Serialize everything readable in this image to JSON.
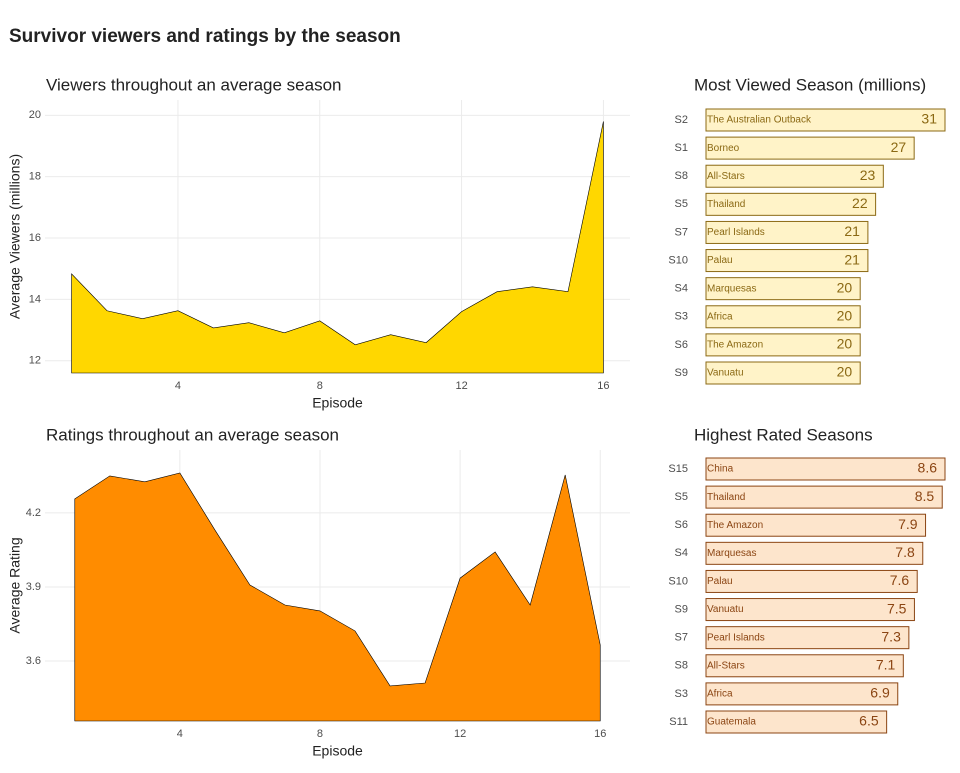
{
  "title": "Survivor viewers and ratings by the season",
  "chart_data": [
    {
      "type": "area",
      "title": "Viewers throughout an average season",
      "xlabel": "Episode",
      "ylabel": "Average Viewers (millions)",
      "x": [
        1,
        2,
        3,
        4,
        5,
        6,
        7,
        8,
        9,
        10,
        11,
        12,
        13,
        14,
        15,
        16
      ],
      "values": [
        14.83,
        13.63,
        13.37,
        13.63,
        13.07,
        13.24,
        12.91,
        13.3,
        12.52,
        12.85,
        12.59,
        13.6,
        14.25,
        14.41,
        14.25,
        19.8
      ],
      "color": "#ffd700",
      "xlim": [
        0.25,
        16.75
      ],
      "ylim": [
        11.6,
        20.5
      ],
      "xticks": [
        4,
        8,
        12,
        16
      ],
      "yticks": [
        12,
        14,
        16,
        18,
        20
      ],
      "grid": true
    },
    {
      "type": "bar",
      "title": "Most Viewed Season (millions)",
      "categories": [
        "S2",
        "S1",
        "S8",
        "S5",
        "S7",
        "S10",
        "S4",
        "S3",
        "S6",
        "S9"
      ],
      "labels": [
        "The Australian Outback",
        "Borneo",
        "All-Stars",
        "Thailand",
        "Pearl Islands",
        "Palau",
        "Marquesas",
        "Africa",
        "The Amazon",
        "Vanuatu"
      ],
      "values": [
        31,
        27,
        23,
        22,
        21,
        21,
        20,
        20,
        20,
        20
      ],
      "color": "#fff3c8",
      "edge_color": "#8b6914"
    },
    {
      "type": "area",
      "title": "Ratings throughout an average season",
      "xlabel": "Episode",
      "ylabel": "Average Rating",
      "x": [
        1,
        2,
        3,
        4,
        5,
        6,
        7,
        8,
        9,
        10,
        11,
        12,
        13,
        14,
        15,
        16
      ],
      "values": [
        4.257,
        4.35,
        4.326,
        4.362,
        4.131,
        3.908,
        3.827,
        3.803,
        3.722,
        3.499,
        3.511,
        3.936,
        4.042,
        3.827,
        4.354,
        3.665
      ],
      "color": "#ff8c00",
      "xlim": [
        0.15,
        16.85
      ],
      "ylim": [
        3.357,
        4.455
      ],
      "xticks": [
        4,
        8,
        12,
        16
      ],
      "yticks": [
        3.6,
        3.9,
        4.2
      ],
      "grid": true
    },
    {
      "type": "bar",
      "title": "Highest Rated Seasons",
      "categories": [
        "S15",
        "S5",
        "S6",
        "S4",
        "S10",
        "S9",
        "S7",
        "S8",
        "S3",
        "S11"
      ],
      "labels": [
        "China",
        "Thailand",
        "The Amazon",
        "Marquesas",
        "Palau",
        "Vanuatu",
        "Pearl Islands",
        "All-Stars",
        "Africa",
        "Guatemala"
      ],
      "values": [
        8.6,
        8.5,
        7.9,
        7.8,
        7.6,
        7.5,
        7.3,
        7.1,
        6.9,
        6.5
      ],
      "color": "#fde5cc",
      "edge_color": "#8b4513"
    }
  ]
}
